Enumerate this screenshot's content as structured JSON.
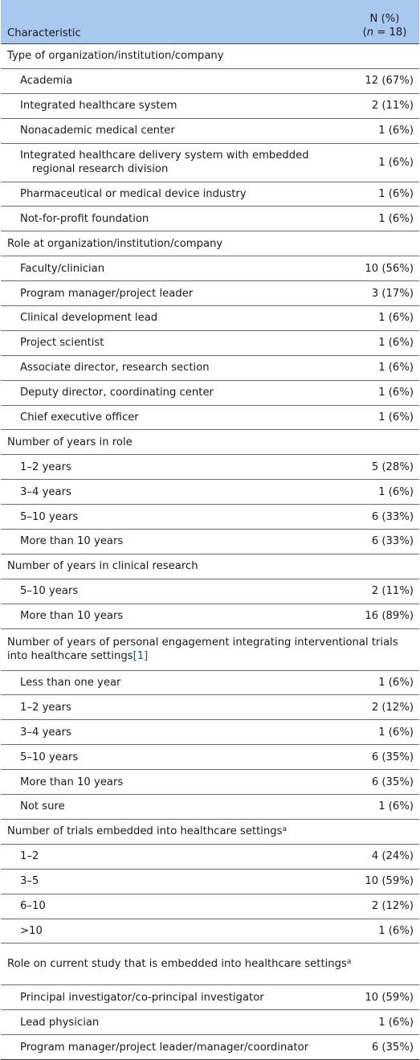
{
  "header": {
    "col1": "Characteristic",
    "col2_line1": "N (%)",
    "col2_n": "n",
    "col2_rest": " = 18)"
  },
  "sections": [
    {
      "title": "Type of organization/institution/company",
      "rows": [
        {
          "label": "Academia",
          "value": "12 (67%)"
        },
        {
          "label": "Integrated healthcare system",
          "value": "2 (11%)"
        },
        {
          "label": "Nonacademic medical center",
          "value": "1 (6%)"
        },
        {
          "label": "Integrated healthcare delivery system with embedded regional research division",
          "value": "1 (6%)"
        },
        {
          "label": "Pharmaceutical or medical device industry",
          "value": "1 (6%)"
        },
        {
          "label": "Not-for-profit foundation",
          "value": "1 (6%)"
        }
      ]
    },
    {
      "title": "Role at organization/institution/company",
      "rows": [
        {
          "label": "Faculty/clinician",
          "value": "10 (56%)"
        },
        {
          "label": "Program manager/project leader",
          "value": "3 (17%)"
        },
        {
          "label": "Clinical development lead",
          "value": "1 (6%)"
        },
        {
          "label": "Project scientist",
          "value": "1 (6%)"
        },
        {
          "label": "Associate director, research section",
          "value": "1 (6%)"
        },
        {
          "label": "Deputy director, coordinating center",
          "value": "1 (6%)"
        },
        {
          "label": "Chief executive officer",
          "value": "1 (6%)"
        }
      ]
    },
    {
      "title": "Number of years in role",
      "rows": [
        {
          "label": "1–2 years",
          "value": "5 (28%)"
        },
        {
          "label": "3–4 years",
          "value": "1 (6%)"
        },
        {
          "label": "5–10 years",
          "value": "6 (33%)"
        },
        {
          "label": "More than 10 years",
          "value": "6 (33%)"
        }
      ]
    },
    {
      "title": "Number of years in clinical research",
      "rows": [
        {
          "label": "5–10 years",
          "value": "2 (11%)"
        },
        {
          "label": "More than 10 years",
          "value": "16 (89%)"
        }
      ]
    },
    {
      "title": "Number of years of personal engagement integrating interventional trials into healthcare settings",
      "ref": "1",
      "rows": [
        {
          "label": "Less than one year",
          "value": "1 (6%)"
        },
        {
          "label": "1–2 years",
          "value": "2 (12%)"
        },
        {
          "label": "3–4 years",
          "value": "1 (6%)"
        },
        {
          "label": "5–10 years",
          "value": "6 (35%)"
        },
        {
          "label": "More than 10 years",
          "value": "6 (35%)"
        },
        {
          "label": "Not sure",
          "value": "1 (6%)"
        }
      ]
    },
    {
      "title": "Number of trials embedded into healthcare settings",
      "sup": "a",
      "rows": [
        {
          "label": "1–2",
          "value": "4 (24%)"
        },
        {
          "label": "3–5",
          "value": "10 (59%)"
        },
        {
          "label": "6–10",
          "value": "2 (12%)"
        },
        {
          "label": ">10",
          "value": "1 (6%)"
        }
      ]
    },
    {
      "title": "Role on current study that is embedded into healthcare settings",
      "sup": "a",
      "rows": [
        {
          "label": "Principal investigator/co-principal investigator",
          "value": "10 (59%)"
        },
        {
          "label": "Lead physician",
          "value": "1 (6%)"
        },
        {
          "label": "Program manager/project leader/manager/coordinator",
          "value": "6 (35%)"
        }
      ]
    }
  ]
}
